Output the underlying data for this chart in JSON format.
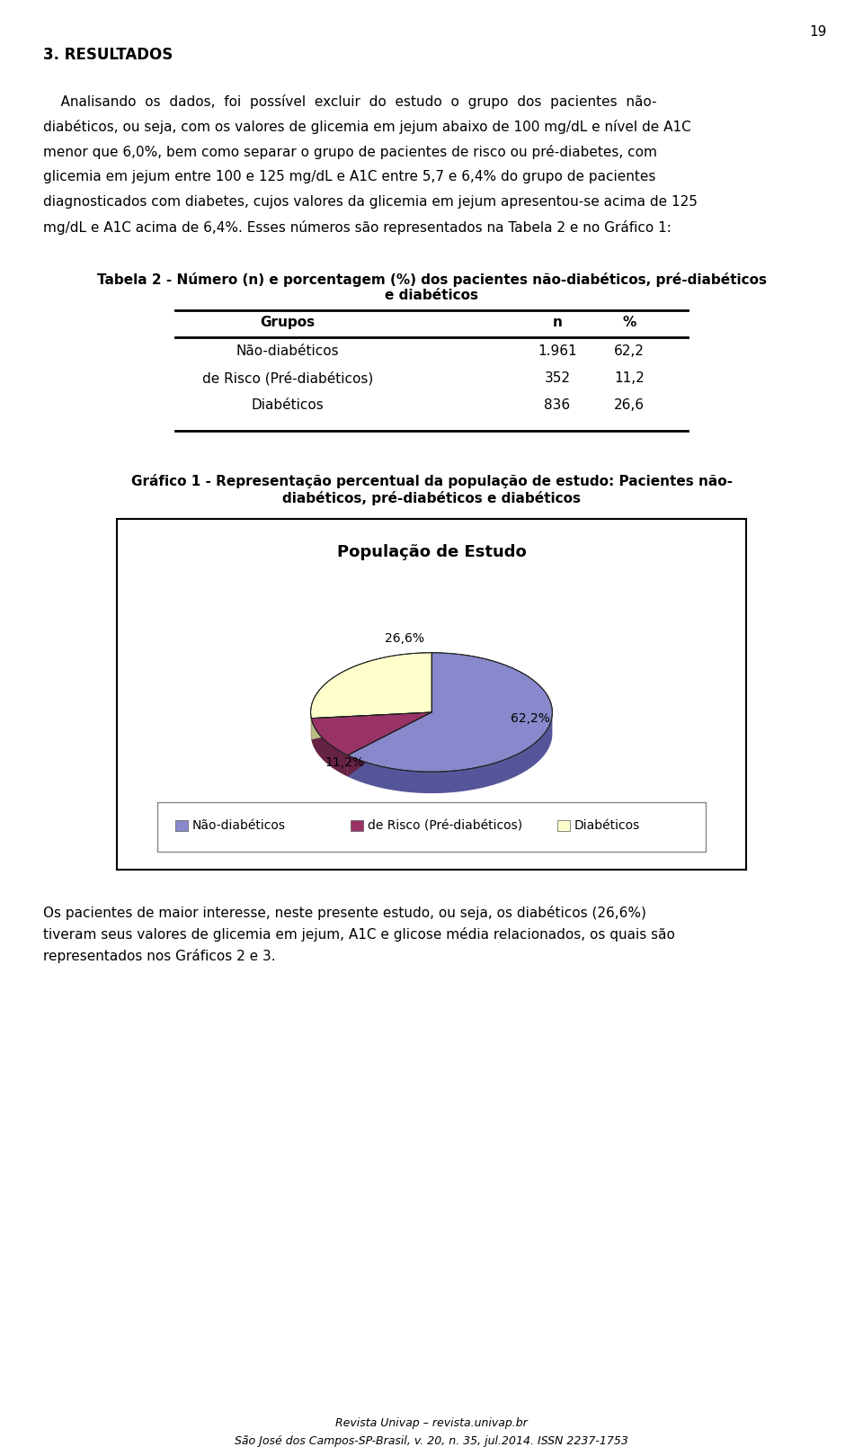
{
  "page_number": "19",
  "section_title": "3. RESULTADOS",
  "para1_lines": [
    "    Analisando  os  dados,  foi  possível  excluir  do  estudo  o  grupo  dos  pacientes  não-",
    "diabéticos, ou seja, com os valores de glicemia em jejum abaixo de 100 mg/dL e nível de A1C",
    "menor que 6,0%, bem como separar o grupo de pacientes de risco ou pré-diabetes, com",
    "glicemia em jejum entre 100 e 125 mg/dL e A1C entre 5,7 e 6,4% do grupo de pacientes",
    "diagnosticados com diabetes, cujos valores da glicemia em jejum apresentou-se acima de 125",
    "mg/dL e A1C acima de 6,4%. Esses números são representados na Tabela 2 e no Gráfico 1:"
  ],
  "table_title_line1": "Tabela 2 - Número (n) e porcentagem (%) dos pacientes não-diabéticos, pré-diabéticos",
  "table_title_line2": "e diabéticos",
  "table_headers": [
    "Grupos",
    "n",
    "%"
  ],
  "table_rows": [
    [
      "Não-diabéticos",
      "1.961",
      "62,2"
    ],
    [
      "de Risco (Pré-diabéticos)",
      "352",
      "11,2"
    ],
    [
      "Diabéticos",
      "836",
      "26,6"
    ]
  ],
  "grafico_title_line1": "Gráfico 1 - Representação percentual da população de estudo: Pacientes não-",
  "grafico_title_line2": "diabéticos, pré-diabéticos e diabéticos",
  "pie_title": "População de Estudo",
  "pie_values": [
    62.2,
    11.2,
    26.6
  ],
  "pie_labels": [
    "62,2%",
    "11,2%",
    "26,6%"
  ],
  "pie_colors": [
    "#8888CC",
    "#993366",
    "#FFFFCC"
  ],
  "pie_dark_colors": [
    "#555599",
    "#662244",
    "#BBBB88"
  ],
  "legend_labels": [
    "Não-diabéticos",
    "de Risco (Pré-diabéticos)",
    "Diabéticos"
  ],
  "para2_lines": [
    "Os pacientes de maior interesse, neste presente estudo, ou seja, os diabéticos (26,6%)",
    "tiveram seus valores de glicemia em jejum, A1C e glicose média relacionados, os quais são",
    "representados nos Gráficos 2 e 3."
  ],
  "footer_line1": "Revista Univap – revista.univap.br",
  "footer_line2": "São José dos Campos-SP-Brasil, v. 20, n. 35, jul.2014. ISSN 2237-1753",
  "bg_color": "#FFFFFF",
  "text_color": "#000000"
}
